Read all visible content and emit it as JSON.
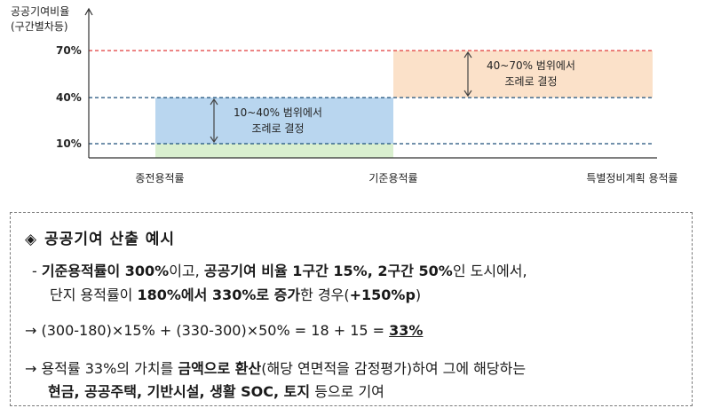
{
  "chart_data": {
    "type": "diagram",
    "y_axis_title_lines": [
      "공공기여비율",
      "(구간별차등)"
    ],
    "y_ticks": [
      "70%",
      "40%",
      "10%"
    ],
    "y_values": [
      70,
      40,
      10
    ],
    "x_labels": [
      "종전용적률",
      "기준용적률",
      "특별정비계획 용적률"
    ],
    "ranges": [
      {
        "from": 10,
        "to": 40,
        "label_lines": [
          "10~40% 범위에서",
          "조례로 결정"
        ],
        "color": "#b9d6ef"
      },
      {
        "from": 40,
        "to": 70,
        "label_lines": [
          "40~70% 범위에서",
          "조례로 결정"
        ],
        "color": "#fbe1c9"
      }
    ],
    "line_colors": {
      "70": "#e03c3c",
      "40": "#1d4f7a",
      "10": "#1d4f7a"
    },
    "base_band_color": "#d9efcf"
  },
  "example": {
    "title": "공공기여 산출 예시",
    "line1": [
      {
        "t": "- ",
        "b": false
      },
      {
        "t": "기준용적률이 300%",
        "b": true
      },
      {
        "t": "이고, ",
        "b": false
      },
      {
        "t": "공공기여 비율 1구간 15%, 2구간 50%",
        "b": true
      },
      {
        "t": "인 도시에서,",
        "b": false
      }
    ],
    "line2": [
      {
        "t": "단지 용적률이 ",
        "b": false
      },
      {
        "t": "180%에서 330%로 증가",
        "b": true
      },
      {
        "t": "한 경우(",
        "b": false
      },
      {
        "t": "+150%p",
        "b": true
      },
      {
        "t": ")",
        "b": false
      }
    ],
    "line3_prefix": "→ (300-180)×15% + (330-300)×50% = 18 + 15 = ",
    "line3_result": "33%",
    "line4": [
      {
        "t": "→ 용적률 33%의 가치를 ",
        "b": false
      },
      {
        "t": "금액으로 환산",
        "b": true
      },
      {
        "t": "(해당 연면적을 감정평가)하여 그에 해당하는",
        "b": false
      }
    ],
    "line5": [
      {
        "t": "현금, 공공주택, 기반시설, 생활 SOC, 토지",
        "b": true
      },
      {
        "t": " 등으로 기여",
        "b": false
      }
    ]
  }
}
